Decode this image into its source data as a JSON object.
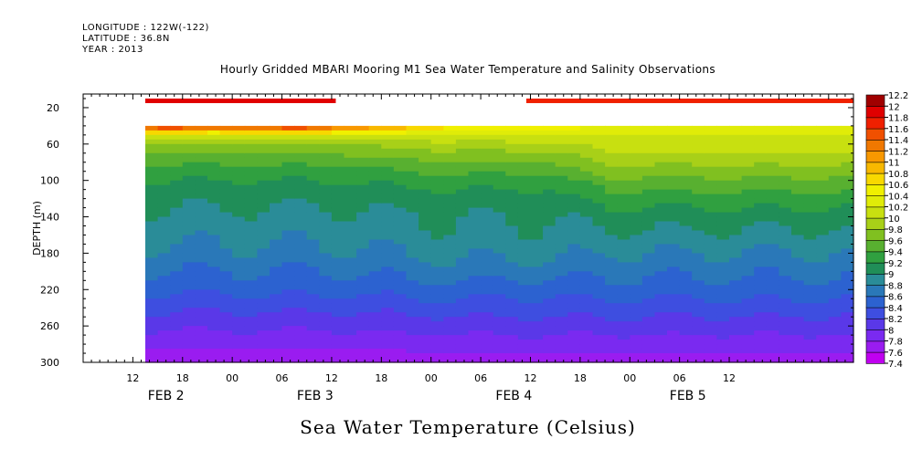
{
  "header": {
    "longitude": "LONGITUDE : 122W(-122)",
    "latitude": "LATITUDE : 36.8N",
    "year": "YEAR : 2013",
    "title": "Hourly Gridded MBARI Mooring M1 Sea Water Temperature and Salinity Observations"
  },
  "chart_data": {
    "type": "heatmap",
    "title": "Hourly Gridded MBARI Mooring M1 Sea Water Temperature and Salinity Observations",
    "xlabel": "",
    "ylabel": "DEPTH (m)",
    "bottom_label": "Sea Water Temperature (Celsius)",
    "x_unit": "hours since FEB 2 00:00",
    "xlim": [
      6,
      99
    ],
    "ylim": [
      300,
      5
    ],
    "y_ticks": [
      20,
      60,
      100,
      140,
      180,
      220,
      260,
      300
    ],
    "x_ticks": [
      {
        "hour": 12,
        "label": "12"
      },
      {
        "hour": 18,
        "label": "18"
      },
      {
        "hour": 24,
        "label": "00"
      },
      {
        "hour": 30,
        "label": "06"
      },
      {
        "hour": 36,
        "label": "12"
      },
      {
        "hour": 42,
        "label": "18"
      },
      {
        "hour": 48,
        "label": "00"
      },
      {
        "hour": 54,
        "label": "06"
      },
      {
        "hour": 60,
        "label": "12"
      },
      {
        "hour": 66,
        "label": "18"
      },
      {
        "hour": 72,
        "label": "00"
      },
      {
        "hour": 78,
        "label": "06"
      },
      {
        "hour": 84,
        "label": "12"
      }
    ],
    "date_labels": [
      {
        "hour": 16,
        "label": "FEB  2"
      },
      {
        "hour": 34,
        "label": "FEB  3"
      },
      {
        "hour": 58,
        "label": "FEB  4"
      },
      {
        "hour": 79,
        "label": "FEB  5"
      }
    ],
    "data_start_hour": 13.5,
    "data_top_depth": 40,
    "surface_bands": [
      {
        "start": 13.5,
        "end": 36.5,
        "depth": [
          10,
          15
        ],
        "value": 11.9
      },
      {
        "start": 59.5,
        "end": 99,
        "depth": [
          10,
          15
        ],
        "value": 11.6
      }
    ],
    "colorbar": {
      "levels": [
        7.4,
        7.6,
        7.8,
        8,
        8.2,
        8.4,
        8.6,
        8.8,
        9,
        9.2,
        9.4,
        9.6,
        9.8,
        10,
        10.2,
        10.4,
        10.6,
        10.8,
        11,
        11.2,
        11.4,
        11.6,
        11.8,
        12,
        12.2
      ],
      "labels": [
        "7.4",
        "7.6",
        "7.8",
        "8",
        "8.2",
        "8.4",
        "8.6",
        "8.8",
        "9",
        "9.2",
        "9.4",
        "9.6",
        "9.8",
        "10",
        "10.2",
        "10.4",
        "10.6",
        "10.8",
        "11",
        "11.2",
        "11.4",
        "11.6",
        "11.8",
        "12",
        "12.2"
      ],
      "colors": [
        "#c000f0",
        "#9a1cf0",
        "#7a2af0",
        "#5a38e8",
        "#3e4ee0",
        "#2c62d0",
        "#2a78b8",
        "#2a8c98",
        "#208e58",
        "#30a040",
        "#58b030",
        "#80c020",
        "#a8d018",
        "#c8e010",
        "#e0ec08",
        "#f0f000",
        "#f8d800",
        "#f8b800",
        "#f89800",
        "#f07800",
        "#f05000",
        "#f02000",
        "#e00000",
        "#a00000"
      ]
    },
    "profile": {
      "depths": [
        40,
        45,
        50,
        55,
        60,
        70,
        80,
        90,
        100,
        120,
        140,
        160,
        180,
        200,
        220,
        240,
        260,
        280,
        300
      ],
      "feb2_3": [
        11.5,
        10.9,
        10.3,
        9.95,
        9.8,
        9.6,
        9.45,
        9.3,
        9.2,
        9.05,
        8.95,
        8.85,
        8.75,
        8.6,
        8.45,
        8.25,
        8.05,
        7.85,
        7.65
      ],
      "feb4": [
        10.7,
        10.4,
        10.2,
        10.05,
        9.95,
        9.75,
        9.6,
        9.45,
        9.3,
        9.1,
        9.0,
        8.95,
        8.85,
        8.7,
        8.5,
        8.3,
        8.1,
        7.9,
        7.7
      ],
      "feb5": [
        10.3,
        10.25,
        10.2,
        10.15,
        10.1,
        10.0,
        9.85,
        9.7,
        9.55,
        9.3,
        9.1,
        8.95,
        8.8,
        8.65,
        8.5,
        8.3,
        8.1,
        7.9,
        7.7
      ]
    }
  }
}
